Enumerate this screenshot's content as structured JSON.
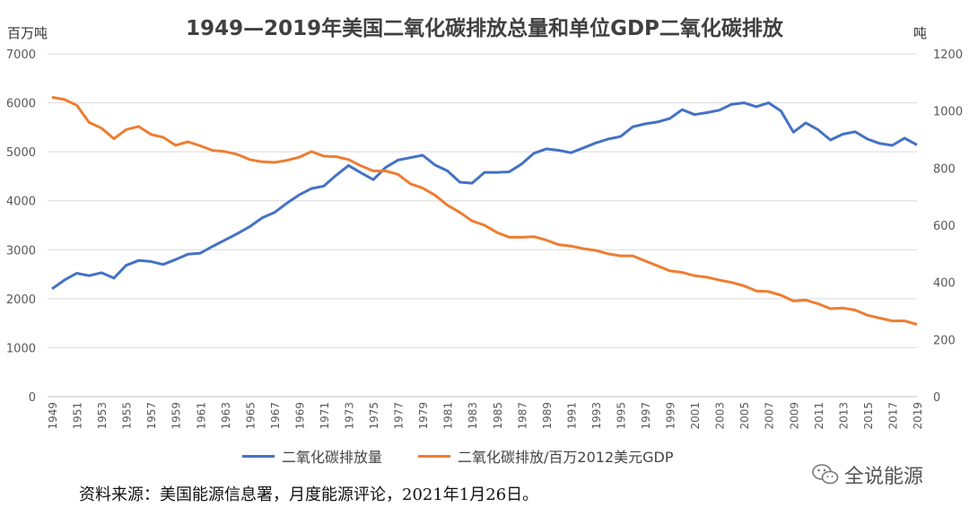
{
  "chart_data": {
    "type": "line",
    "title": "1949—2019年美国二氧化碳排放总量和单位GDP二氧化碳排放",
    "ylabel_left": "百万吨",
    "ylabel_right": "吨",
    "ylim_left": [
      0,
      7000
    ],
    "ylim_right": [
      0,
      1200
    ],
    "yticks_left": [
      0,
      1000,
      2000,
      3000,
      4000,
      5000,
      6000,
      7000
    ],
    "yticks_right": [
      0,
      200,
      400,
      600,
      800,
      1000,
      1200
    ],
    "x": [
      1949,
      1950,
      1951,
      1952,
      1953,
      1954,
      1955,
      1956,
      1957,
      1958,
      1959,
      1960,
      1961,
      1962,
      1963,
      1964,
      1965,
      1966,
      1967,
      1968,
      1969,
      1970,
      1971,
      1972,
      1973,
      1974,
      1975,
      1976,
      1977,
      1978,
      1979,
      1980,
      1981,
      1982,
      1983,
      1984,
      1985,
      1986,
      1987,
      1988,
      1989,
      1990,
      1991,
      1992,
      1993,
      1994,
      1995,
      1996,
      1997,
      1998,
      1999,
      2000,
      2001,
      2002,
      2003,
      2004,
      2005,
      2006,
      2007,
      2008,
      2009,
      2010,
      2011,
      2012,
      2013,
      2014,
      2015,
      2016,
      2017,
      2018,
      2019
    ],
    "xticks": [
      "1949",
      "1951",
      "1953",
      "1955",
      "1957",
      "1959",
      "1961",
      "1963",
      "1965",
      "1967",
      "1969",
      "1971",
      "1973",
      "1975",
      "1977",
      "1979",
      "1981",
      "1983",
      "1985",
      "1987",
      "1989",
      "1991",
      "1993",
      "1995",
      "1997",
      "1999",
      "2001",
      "2003",
      "2005",
      "2007",
      "2009",
      "2011",
      "2013",
      "2015",
      "2017",
      "2019"
    ],
    "grid": true,
    "legend_position": "bottom",
    "series": [
      {
        "name": "二氧化碳排放量",
        "axis": "left",
        "color": "#4472C4",
        "values": [
          2200,
          2380,
          2520,
          2470,
          2530,
          2420,
          2680,
          2780,
          2760,
          2700,
          2800,
          2910,
          2930,
          3070,
          3200,
          3330,
          3470,
          3650,
          3760,
          3950,
          4120,
          4250,
          4300,
          4520,
          4720,
          4570,
          4430,
          4680,
          4830,
          4880,
          4930,
          4730,
          4610,
          4380,
          4360,
          4580,
          4580,
          4590,
          4750,
          4970,
          5060,
          5030,
          4980,
          5080,
          5180,
          5260,
          5310,
          5510,
          5570,
          5610,
          5680,
          5860,
          5760,
          5800,
          5850,
          5970,
          6000,
          5920,
          6000,
          5830,
          5400,
          5590,
          5450,
          5240,
          5360,
          5410,
          5260,
          5170,
          5130,
          5280,
          5140
        ]
      },
      {
        "name": "二氧化碳排放/百万2012美元GDP",
        "axis": "right",
        "color": "#ED7D31",
        "values": [
          1048,
          1040,
          1020,
          960,
          940,
          903,
          935,
          946,
          918,
          908,
          880,
          892,
          878,
          862,
          858,
          848,
          830,
          822,
          820,
          827,
          838,
          858,
          842,
          840,
          830,
          808,
          790,
          790,
          778,
          745,
          730,
          705,
          670,
          645,
          615,
          600,
          575,
          558,
          558,
          560,
          548,
          532,
          527,
          518,
          512,
          500,
          493,
          493,
          475,
          458,
          440,
          435,
          423,
          418,
          408,
          400,
          388,
          370,
          368,
          355,
          335,
          338,
          325,
          308,
          310,
          303,
          285,
          275,
          265,
          265,
          253
        ]
      }
    ]
  },
  "source": "资料来源：美国能源信息署，月度能源评论，2021年1月26日。",
  "watermark": "全说能源"
}
